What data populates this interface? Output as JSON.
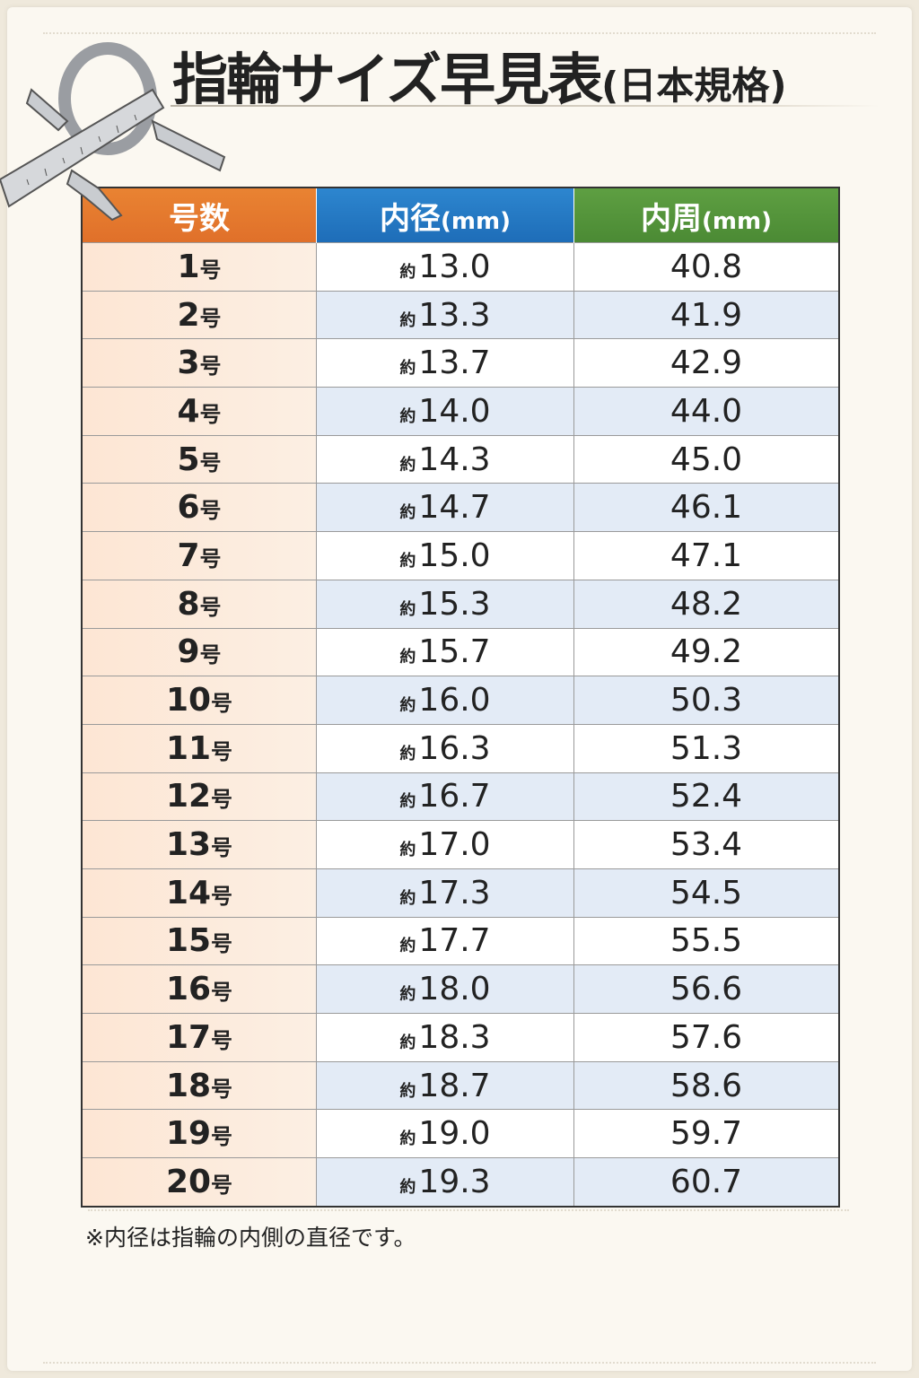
{
  "title": {
    "main": "指輪サイズ早見表",
    "sub": "(日本規格)"
  },
  "table": {
    "headers": [
      {
        "label": "号数",
        "unit": ""
      },
      {
        "label": "内径",
        "unit": "(mm)"
      },
      {
        "label": "内周",
        "unit": "(mm)"
      }
    ],
    "header_colors": [
      "#e57a2e",
      "#2479c4",
      "#56953c"
    ],
    "approx_prefix": "約",
    "size_suffix": "号",
    "rows": [
      {
        "size": "1",
        "diameter": "13.0",
        "circumference": "40.8"
      },
      {
        "size": "2",
        "diameter": "13.3",
        "circumference": "41.9"
      },
      {
        "size": "3",
        "diameter": "13.7",
        "circumference": "42.9"
      },
      {
        "size": "4",
        "diameter": "14.0",
        "circumference": "44.0"
      },
      {
        "size": "5",
        "diameter": "14.3",
        "circumference": "45.0"
      },
      {
        "size": "6",
        "diameter": "14.7",
        "circumference": "46.1"
      },
      {
        "size": "7",
        "diameter": "15.0",
        "circumference": "47.1"
      },
      {
        "size": "8",
        "diameter": "15.3",
        "circumference": "48.2"
      },
      {
        "size": "9",
        "diameter": "15.7",
        "circumference": "49.2"
      },
      {
        "size": "10",
        "diameter": "16.0",
        "circumference": "50.3"
      },
      {
        "size": "11",
        "diameter": "16.3",
        "circumference": "51.3"
      },
      {
        "size": "12",
        "diameter": "16.7",
        "circumference": "52.4"
      },
      {
        "size": "13",
        "diameter": "17.0",
        "circumference": "53.4"
      },
      {
        "size": "14",
        "diameter": "17.3",
        "circumference": "54.5"
      },
      {
        "size": "15",
        "diameter": "17.7",
        "circumference": "55.5"
      },
      {
        "size": "16",
        "diameter": "18.0",
        "circumference": "56.6"
      },
      {
        "size": "17",
        "diameter": "18.3",
        "circumference": "57.6"
      },
      {
        "size": "18",
        "diameter": "18.7",
        "circumference": "58.6"
      },
      {
        "size": "19",
        "diameter": "19.0",
        "circumference": "59.7"
      },
      {
        "size": "20",
        "diameter": "19.3",
        "circumference": "60.7"
      }
    ]
  },
  "note": "※内径は指輪の内側の直径です。",
  "illustration": "caliper-and-ring"
}
